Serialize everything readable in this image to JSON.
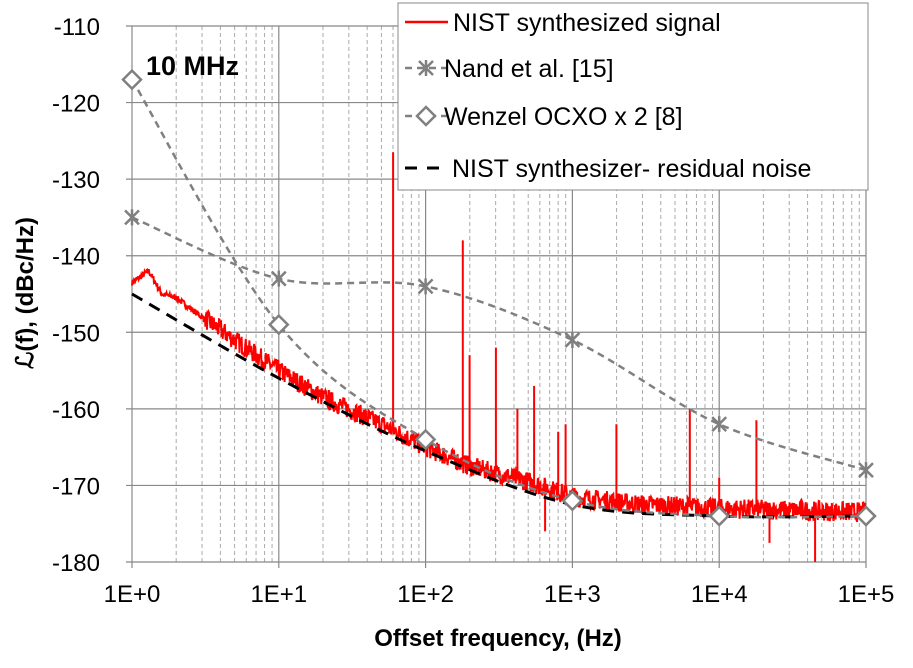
{
  "chart_data": {
    "type": "line",
    "title": "",
    "annotation": "10 MHz",
    "xlabel": "Offset frequency, (Hz)",
    "ylabel": "ℒ(f), (dBc/Hz)",
    "x_scale": "log",
    "xlim": [
      1,
      100000
    ],
    "ylim": [
      -180,
      -110
    ],
    "x_ticks": [
      1,
      10,
      100,
      1000,
      10000,
      100000
    ],
    "x_tick_labels": [
      "1E+0",
      "1E+1",
      "1E+2",
      "1E+3",
      "1E+4",
      "1E+5"
    ],
    "y_ticks": [
      -110,
      -120,
      -130,
      -140,
      -150,
      -160,
      -170,
      -180
    ],
    "y_tick_labels": [
      "-110",
      "-120",
      "-130",
      "-140",
      "-150",
      "-160",
      "-170",
      "-180"
    ],
    "grid": true,
    "legend_placement": "top-right",
    "series": [
      {
        "name": "NIST synthesized signal",
        "color": "#ff0000",
        "style": "solid",
        "baseline": [
          [
            1,
            -143.5
          ],
          [
            1.3,
            -142
          ],
          [
            1.6,
            -145
          ],
          [
            2,
            -145.5
          ],
          [
            3,
            -148
          ],
          [
            5,
            -151
          ],
          [
            10,
            -155
          ],
          [
            20,
            -158.5
          ],
          [
            50,
            -162
          ],
          [
            100,
            -165
          ],
          [
            200,
            -167.5
          ],
          [
            500,
            -169.5
          ],
          [
            1000,
            -171.5
          ],
          [
            3000,
            -172.5
          ],
          [
            10000,
            -173
          ],
          [
            100000,
            -173.5
          ]
        ],
        "spurs": [
          [
            60,
            -126.5
          ],
          [
            180,
            -138
          ],
          [
            200,
            -153
          ],
          [
            300,
            -152
          ],
          [
            420,
            -160
          ],
          [
            550,
            -157
          ],
          [
            800,
            -163
          ],
          [
            900,
            -162
          ],
          [
            2000,
            -162
          ],
          [
            6300,
            -160
          ],
          [
            10000,
            -169
          ],
          [
            18000,
            -161.5
          ],
          [
            650,
            -176
          ],
          [
            22000,
            -177.5
          ],
          [
            45000,
            -180
          ]
        ]
      },
      {
        "name": "Nand et al. [15]",
        "color": "#808080",
        "style": "dashed",
        "marker": "asterisk",
        "points": [
          [
            1,
            -135
          ],
          [
            10,
            -143
          ],
          [
            100,
            -144
          ],
          [
            1000,
            -151
          ],
          [
            10000,
            -162
          ],
          [
            100000,
            -168
          ]
        ]
      },
      {
        "name": "Wenzel OCXO x 2 [8]",
        "color": "#808080",
        "style": "dashed",
        "marker": "diamond",
        "points": [
          [
            1,
            -117
          ],
          [
            10,
            -149
          ],
          [
            100,
            -164
          ],
          [
            1000,
            -172
          ],
          [
            10000,
            -174
          ],
          [
            100000,
            -174
          ]
        ]
      },
      {
        "name": "NIST synthesizer- residual noise",
        "color": "#000000",
        "style": "dashed",
        "points": [
          [
            1,
            -145
          ],
          [
            10,
            -156
          ],
          [
            100,
            -165.5
          ],
          [
            1000,
            -172.5
          ],
          [
            10000,
            -174
          ],
          [
            100000,
            -174
          ]
        ]
      }
    ]
  }
}
